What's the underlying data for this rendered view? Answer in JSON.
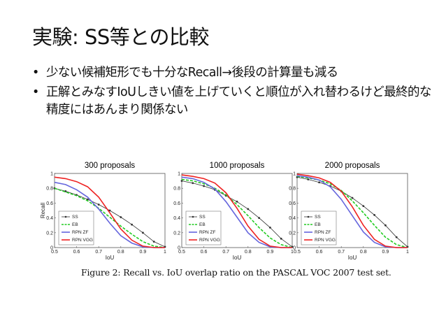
{
  "slide": {
    "title": "実験: SS等との比較",
    "bullets": [
      "少ない候補矩形でも十分なRecall→後段の計算量も減る",
      "正解とみなすIoUしきい値を上げていくと順位が入れ替わるけど最終的な精度にはあんまり関係ない"
    ]
  },
  "figure": {
    "caption": "Figure 2: Recall vs. IoU overlap ratio on the PASCAL VOC 2007 test set."
  },
  "chart_data": [
    {
      "type": "line",
      "title": "300 proposals",
      "xlabel": "IoU",
      "ylabel": "Recall",
      "xlim": [
        0.5,
        1
      ],
      "ylim": [
        0,
        1
      ],
      "xticks": [
        "0.5",
        "0.6",
        "0.7",
        "0.8",
        "0.9",
        "1"
      ],
      "yticks": [
        "0",
        "0.2",
        "0.4",
        "0.6",
        "0.8",
        "1"
      ],
      "legend": "bottom-left",
      "x": [
        0.5,
        0.55,
        0.6,
        0.65,
        0.7,
        0.75,
        0.8,
        0.85,
        0.9,
        0.95,
        1.0
      ],
      "series": [
        {
          "name": "SS",
          "color": "#333333",
          "style": "dots",
          "values": [
            0.8,
            0.76,
            0.71,
            0.65,
            0.58,
            0.5,
            0.41,
            0.31,
            0.2,
            0.08,
            0.01
          ]
        },
        {
          "name": "EB",
          "color": "#22cc22",
          "style": "dashed",
          "values": [
            0.8,
            0.75,
            0.7,
            0.63,
            0.53,
            0.41,
            0.29,
            0.18,
            0.08,
            0.02,
            0.0
          ]
        },
        {
          "name": "RPN ZF",
          "color": "#6666dd",
          "style": "solid",
          "values": [
            0.88,
            0.85,
            0.78,
            0.68,
            0.52,
            0.33,
            0.16,
            0.06,
            0.01,
            0.0,
            0.0
          ]
        },
        {
          "name": "RPN VGG",
          "color": "#ee2222",
          "style": "solid",
          "values": [
            0.95,
            0.93,
            0.89,
            0.82,
            0.68,
            0.47,
            0.25,
            0.1,
            0.02,
            0.0,
            0.0
          ]
        }
      ]
    },
    {
      "type": "line",
      "title": "1000 proposals",
      "xlabel": "IoU",
      "ylabel": "",
      "xlim": [
        0.5,
        1
      ],
      "ylim": [
        0,
        1
      ],
      "xticks": [
        "0.5",
        "0.6",
        "0.7",
        "0.8",
        "0.9",
        "1"
      ],
      "yticks": [
        "0",
        "0.2",
        "0.4",
        "0.6",
        "0.8",
        "1"
      ],
      "legend": "bottom-left",
      "x": [
        0.5,
        0.55,
        0.6,
        0.65,
        0.7,
        0.75,
        0.8,
        0.85,
        0.9,
        0.95,
        1.0
      ],
      "series": [
        {
          "name": "SS",
          "color": "#333333",
          "style": "dots",
          "values": [
            0.9,
            0.87,
            0.83,
            0.78,
            0.7,
            0.62,
            0.52,
            0.4,
            0.27,
            0.12,
            0.01
          ]
        },
        {
          "name": "EB",
          "color": "#22cc22",
          "style": "dashed",
          "values": [
            0.92,
            0.9,
            0.86,
            0.8,
            0.71,
            0.58,
            0.43,
            0.27,
            0.13,
            0.04,
            0.0
          ]
        },
        {
          "name": "RPN ZF",
          "color": "#6666dd",
          "style": "solid",
          "values": [
            0.95,
            0.93,
            0.88,
            0.79,
            0.62,
            0.41,
            0.2,
            0.07,
            0.01,
            0.0,
            0.0
          ]
        },
        {
          "name": "RPN VGG",
          "color": "#ee2222",
          "style": "solid",
          "values": [
            0.98,
            0.96,
            0.93,
            0.87,
            0.74,
            0.53,
            0.29,
            0.11,
            0.02,
            0.0,
            0.0
          ]
        }
      ]
    },
    {
      "type": "line",
      "title": "2000 proposals",
      "xlabel": "IoU",
      "ylabel": "",
      "xlim": [
        0.5,
        1
      ],
      "ylim": [
        0,
        1
      ],
      "xticks": [
        "0.5",
        "0.6",
        "0.7",
        "0.8",
        "0.9",
        "1"
      ],
      "yticks": [
        "0",
        "0.2",
        "0.4",
        "0.6",
        "0.8",
        "1"
      ],
      "legend": "bottom-left",
      "x": [
        0.5,
        0.55,
        0.6,
        0.65,
        0.7,
        0.75,
        0.8,
        0.85,
        0.9,
        0.95,
        1.0
      ],
      "series": [
        {
          "name": "SS",
          "color": "#333333",
          "style": "dots",
          "values": [
            0.95,
            0.92,
            0.88,
            0.83,
            0.76,
            0.67,
            0.56,
            0.44,
            0.3,
            0.14,
            0.01
          ]
        },
        {
          "name": "EB",
          "color": "#22cc22",
          "style": "dashed",
          "values": [
            0.96,
            0.94,
            0.91,
            0.86,
            0.77,
            0.63,
            0.47,
            0.3,
            0.14,
            0.04,
            0.0
          ]
        },
        {
          "name": "RPN ZF",
          "color": "#6666dd",
          "style": "solid",
          "values": [
            0.97,
            0.95,
            0.91,
            0.82,
            0.65,
            0.43,
            0.21,
            0.07,
            0.01,
            0.0,
            0.0
          ]
        },
        {
          "name": "RPN VGG",
          "color": "#ee2222",
          "style": "solid",
          "values": [
            0.99,
            0.97,
            0.94,
            0.88,
            0.76,
            0.55,
            0.3,
            0.11,
            0.02,
            0.0,
            0.0
          ]
        }
      ]
    }
  ]
}
